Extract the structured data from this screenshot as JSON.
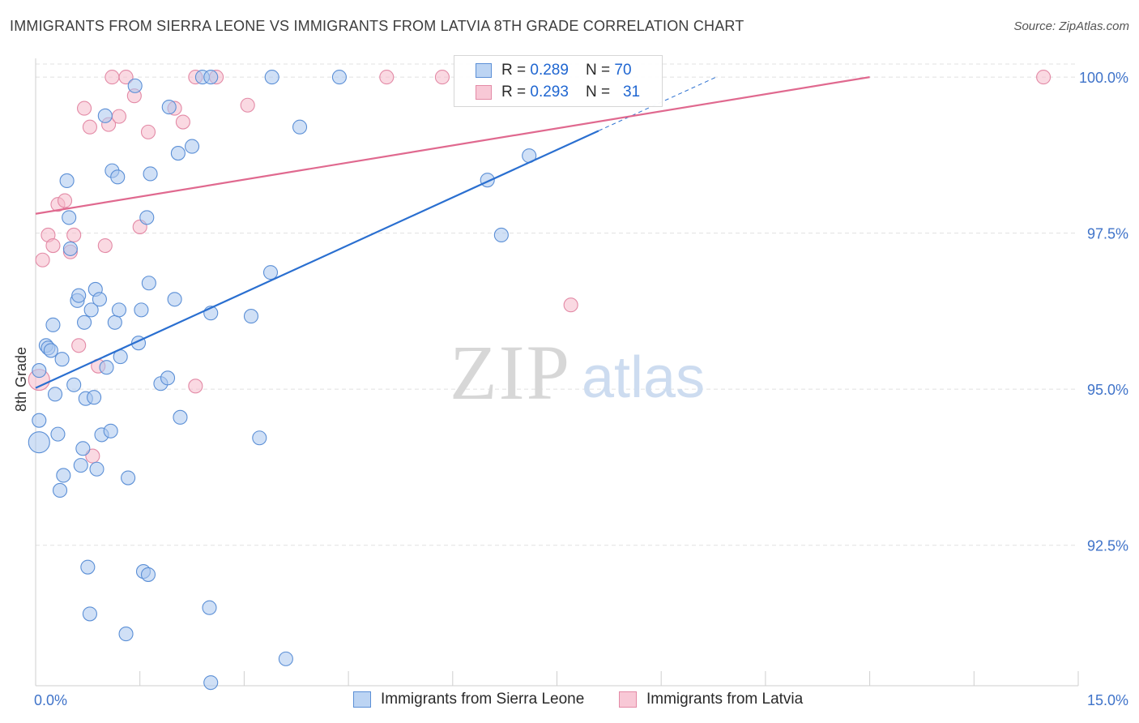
{
  "colors": {
    "blue_fill": "#a9c7ef",
    "blue_stroke": "#5b8fd6",
    "blue_line": "#2a6fd0",
    "pink_fill": "#f5b9cb",
    "pink_stroke": "#e38aa6",
    "pink_line": "#e0698f",
    "axis_text": "#3f73c9",
    "grid": "#e1e1e1"
  },
  "chart_data": {
    "type": "scatter",
    "title": "IMMIGRANTS FROM SIERRA LEONE VS IMMIGRANTS FROM LATVIA 8TH GRADE CORRELATION CHART",
    "source": "Source: ZipAtlas.com",
    "watermark": {
      "zip": "ZIP",
      "atlas": "atlas"
    },
    "xlabel": "",
    "ylabel": "8th Grade",
    "xlim": [
      0,
      15
    ],
    "ylim": [
      90.25,
      100.3
    ],
    "x_tick_labels": [
      {
        "value": 0,
        "label": "0.0%"
      },
      {
        "value": 15,
        "label": "15.0%"
      }
    ],
    "x_minor_ticks": [
      0,
      1.5,
      3,
      4.5,
      6,
      7.5,
      9,
      10.5,
      12,
      13.5,
      15
    ],
    "y_ticks": [
      {
        "value": 100.0,
        "label": "100.0%"
      },
      {
        "value": 97.5,
        "label": "97.5%"
      },
      {
        "value": 95.0,
        "label": "95.0%"
      },
      {
        "value": 92.5,
        "label": "92.5%"
      }
    ],
    "grid": true,
    "legend_position": "top-center",
    "series": [
      {
        "name": "Immigrants from Sierra Leone",
        "R": "0.289",
        "N": "70",
        "color": "blue",
        "trend": {
          "x0": 0,
          "y0": 95.02,
          "x1": 8.1,
          "y1": 99.14,
          "dash_to_x": 9.8
        },
        "points": [
          [
            0.05,
            94.5
          ],
          [
            0.05,
            94.15
          ],
          [
            0.05,
            95.3
          ],
          [
            0.15,
            95.7
          ],
          [
            0.18,
            95.66
          ],
          [
            0.22,
            95.62
          ],
          [
            0.25,
            96.03
          ],
          [
            0.28,
            94.92
          ],
          [
            0.32,
            94.28
          ],
          [
            0.38,
            95.48
          ],
          [
            0.35,
            93.38
          ],
          [
            0.4,
            93.62
          ],
          [
            0.45,
            98.34
          ],
          [
            0.48,
            97.75
          ],
          [
            0.5,
            97.25
          ],
          [
            0.55,
            95.07
          ],
          [
            0.6,
            96.42
          ],
          [
            0.62,
            96.5
          ],
          [
            0.65,
            93.78
          ],
          [
            0.68,
            94.05
          ],
          [
            0.7,
            96.07
          ],
          [
            0.72,
            94.85
          ],
          [
            0.75,
            92.15
          ],
          [
            0.78,
            91.4
          ],
          [
            0.8,
            96.27
          ],
          [
            0.84,
            94.87
          ],
          [
            0.86,
            96.6
          ],
          [
            0.88,
            93.72
          ],
          [
            0.92,
            96.44
          ],
          [
            0.95,
            94.27
          ],
          [
            1.0,
            99.38
          ],
          [
            1.02,
            95.35
          ],
          [
            1.08,
            94.33
          ],
          [
            1.1,
            98.5
          ],
          [
            1.14,
            96.07
          ],
          [
            1.18,
            98.4
          ],
          [
            1.2,
            96.27
          ],
          [
            1.22,
            95.52
          ],
          [
            1.3,
            91.08
          ],
          [
            1.33,
            93.58
          ],
          [
            1.43,
            99.86
          ],
          [
            1.48,
            95.74
          ],
          [
            1.52,
            96.27
          ],
          [
            1.55,
            92.08
          ],
          [
            1.6,
            97.75
          ],
          [
            1.62,
            92.03
          ],
          [
            1.63,
            96.7
          ],
          [
            1.65,
            98.45
          ],
          [
            1.8,
            95.09
          ],
          [
            1.9,
            95.18
          ],
          [
            1.92,
            99.52
          ],
          [
            2.0,
            96.44
          ],
          [
            2.05,
            98.78
          ],
          [
            2.08,
            94.55
          ],
          [
            2.25,
            98.89
          ],
          [
            2.4,
            100.0
          ],
          [
            2.5,
            91.5
          ],
          [
            2.52,
            90.3
          ],
          [
            2.52,
            100.0
          ],
          [
            2.52,
            96.22
          ],
          [
            3.1,
            96.17
          ],
          [
            3.22,
            94.22
          ],
          [
            3.38,
            96.87
          ],
          [
            3.4,
            100.0
          ],
          [
            3.6,
            90.68
          ],
          [
            3.8,
            99.2
          ],
          [
            4.37,
            100.0
          ],
          [
            6.5,
            98.35
          ],
          [
            6.7,
            97.47
          ],
          [
            7.1,
            98.74
          ]
        ]
      },
      {
        "name": "Immigrants from Latvia",
        "R": "0.293",
        "N": "31",
        "color": "pink",
        "trend": {
          "x0": 0,
          "y0": 97.81,
          "x1": 12.0,
          "y1": 100.0
        },
        "points": [
          [
            0.05,
            95.15
          ],
          [
            0.1,
            97.07
          ],
          [
            0.18,
            97.47
          ],
          [
            0.25,
            97.3
          ],
          [
            0.32,
            97.96
          ],
          [
            0.42,
            98.02
          ],
          [
            0.5,
            97.2
          ],
          [
            0.55,
            97.47
          ],
          [
            0.62,
            95.7
          ],
          [
            0.7,
            99.5
          ],
          [
            0.78,
            99.2
          ],
          [
            0.82,
            93.93
          ],
          [
            0.9,
            95.37
          ],
          [
            1.0,
            97.3
          ],
          [
            1.05,
            99.24
          ],
          [
            1.1,
            100.0
          ],
          [
            1.2,
            99.37
          ],
          [
            1.3,
            100.0
          ],
          [
            1.42,
            99.7
          ],
          [
            1.5,
            97.6
          ],
          [
            1.62,
            99.12
          ],
          [
            2.0,
            99.5
          ],
          [
            2.12,
            99.28
          ],
          [
            2.3,
            95.05
          ],
          [
            2.3,
            100.0
          ],
          [
            2.6,
            100.0
          ],
          [
            3.05,
            99.55
          ],
          [
            5.05,
            100.0
          ],
          [
            5.85,
            100.0
          ],
          [
            7.7,
            96.35
          ],
          [
            14.5,
            100.0
          ]
        ]
      }
    ]
  },
  "legend": {
    "row1": {
      "r_label": "R = ",
      "r_value": "0.289",
      "n_label": "N = ",
      "n_value": "70"
    },
    "row2": {
      "r_label": "R = ",
      "r_value": "0.293",
      "n_label": "N = ",
      "n_value": "31"
    }
  },
  "bottom_legend": {
    "blue_label": "Immigrants from Sierra Leone",
    "pink_label": "Immigrants from Latvia"
  }
}
